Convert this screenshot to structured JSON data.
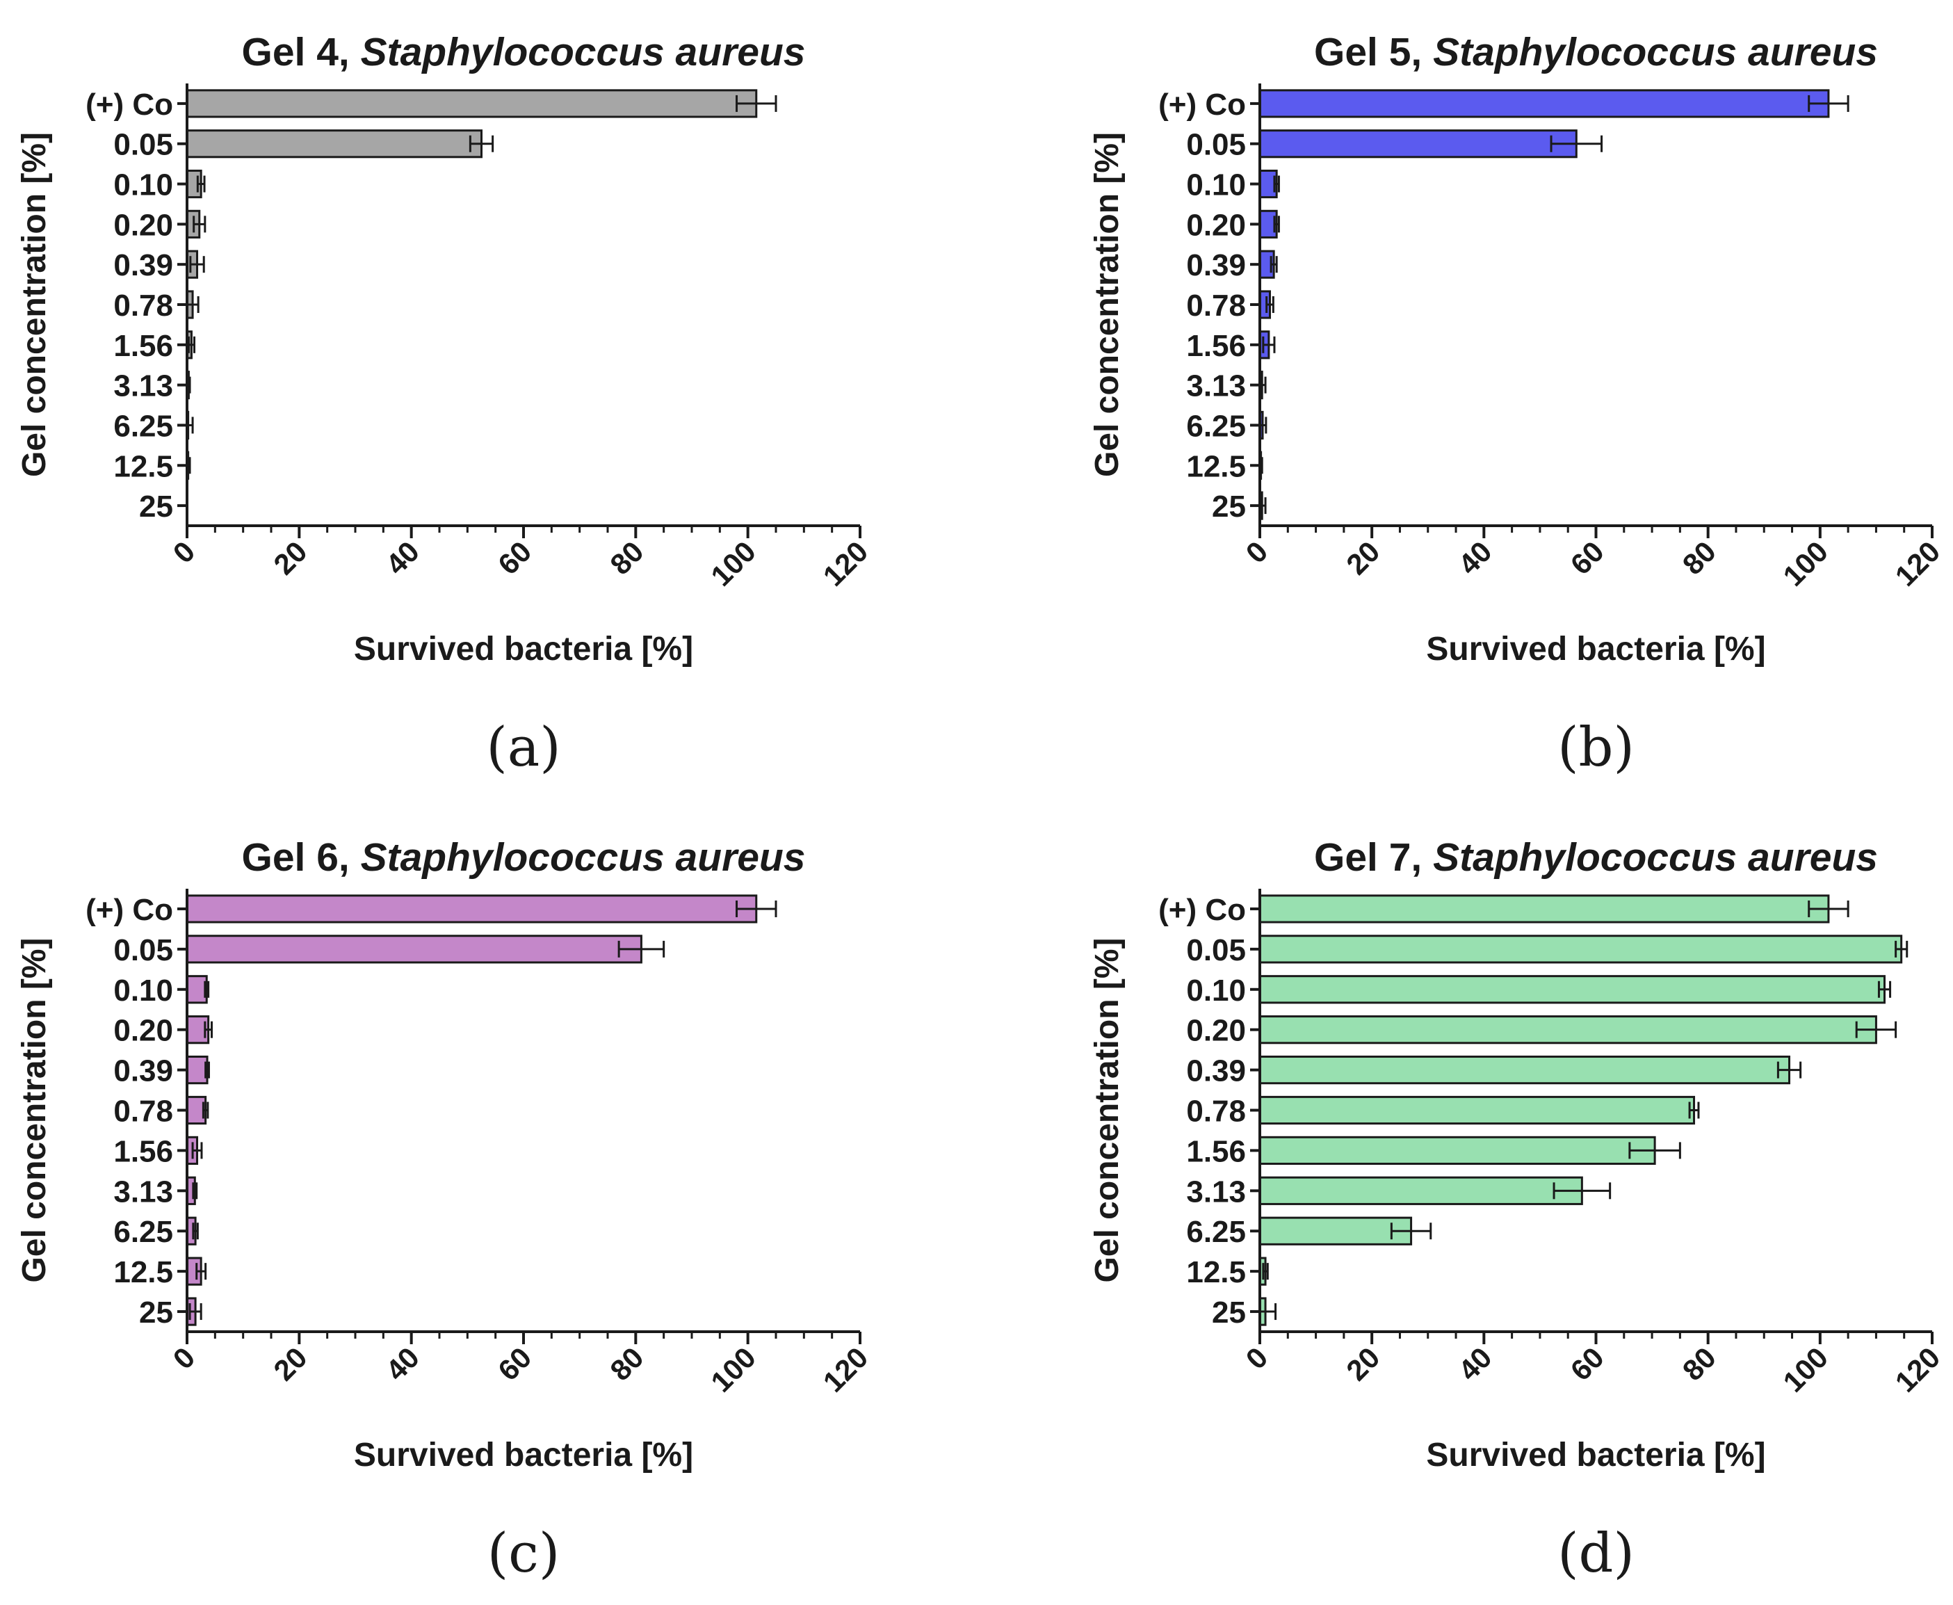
{
  "chart_data": [
    {
      "type": "bar",
      "orientation": "horizontal",
      "title_prefix": "Gel 4, ",
      "title_species": "Staphylococcus aureus",
      "panel_label": "(a)",
      "bar_color": "#a6a6a6",
      "categories": [
        "(+) Co",
        "0.05",
        "0.10",
        "0.20",
        "0.39",
        "0.78",
        "1.56",
        "3.13",
        "6.25",
        "12.5",
        "25"
      ],
      "values": [
        101.5,
        52.5,
        2.5,
        2.2,
        1.8,
        1.0,
        0.8,
        0.3,
        0.2,
        0.2,
        0.0
      ],
      "errors": [
        3.5,
        2.0,
        0.6,
        1.0,
        1.2,
        1.0,
        0.5,
        0.2,
        0.8,
        0.3,
        0.0
      ],
      "xlabel": "Survived bacteria [%]",
      "ylabel": "Gel concentration [%]",
      "xlim": [
        0,
        120
      ],
      "xticks": [
        0,
        20,
        40,
        60,
        80,
        100,
        120
      ]
    },
    {
      "type": "bar",
      "orientation": "horizontal",
      "title_prefix": "Gel 5, ",
      "title_species": "Staphylococcus aureus",
      "panel_label": "(b)",
      "bar_color": "#5b5bef",
      "categories": [
        "(+) Co",
        "0.05",
        "0.10",
        "0.20",
        "0.39",
        "0.78",
        "1.56",
        "3.13",
        "6.25",
        "12.5",
        "25"
      ],
      "values": [
        101.5,
        56.5,
        3.0,
        3.0,
        2.5,
        1.8,
        1.6,
        0.4,
        0.5,
        0.2,
        0.4
      ],
      "errors": [
        3.5,
        4.5,
        0.4,
        0.4,
        0.5,
        0.6,
        1.0,
        0.6,
        0.6,
        0.2,
        0.6
      ],
      "xlabel": "Survived bacteria [%]",
      "ylabel": "Gel concentration [%]",
      "xlim": [
        0,
        120
      ],
      "xticks": [
        0,
        20,
        40,
        60,
        80,
        100,
        120
      ]
    },
    {
      "type": "bar",
      "orientation": "horizontal",
      "title_prefix": "Gel 6, ",
      "title_species": "Staphylococcus aureus",
      "panel_label": "(c)",
      "bar_color": "#c487c9",
      "categories": [
        "(+) Co",
        "0.05",
        "0.10",
        "0.20",
        "0.39",
        "0.78",
        "1.56",
        "3.13",
        "6.25",
        "12.5",
        "25"
      ],
      "values": [
        101.5,
        81.0,
        3.5,
        3.8,
        3.6,
        3.3,
        1.8,
        1.4,
        1.5,
        2.5,
        1.5
      ],
      "errors": [
        3.5,
        4.0,
        0.3,
        0.6,
        0.3,
        0.4,
        0.8,
        0.3,
        0.4,
        0.8,
        1.0
      ],
      "xlabel": "Survived bacteria [%]",
      "ylabel": "Gel concentration [%]",
      "xlim": [
        0,
        120
      ],
      "xticks": [
        0,
        20,
        40,
        60,
        80,
        100,
        120
      ]
    },
    {
      "type": "bar",
      "orientation": "horizontal",
      "title_prefix": "Gel 7, ",
      "title_species": "Staphylococcus aureus",
      "panel_label": "(d)",
      "bar_color": "#98e0b0",
      "categories": [
        "(+) Co",
        "0.05",
        "0.10",
        "0.20",
        "0.39",
        "0.78",
        "1.56",
        "3.13",
        "6.25",
        "12.5",
        "25"
      ],
      "values": [
        101.5,
        114.5,
        111.5,
        110.0,
        94.5,
        77.5,
        70.5,
        57.5,
        27.0,
        1.0,
        1.0
      ],
      "errors": [
        3.5,
        1.0,
        1.0,
        3.5,
        2.0,
        0.8,
        4.5,
        5.0,
        3.5,
        0.4,
        1.8
      ],
      "xlabel": "Survived bacteria [%]",
      "ylabel": "Gel concentration [%]",
      "xlim": [
        0,
        120
      ],
      "xticks": [
        0,
        20,
        40,
        60,
        80,
        100,
        120
      ]
    }
  ]
}
